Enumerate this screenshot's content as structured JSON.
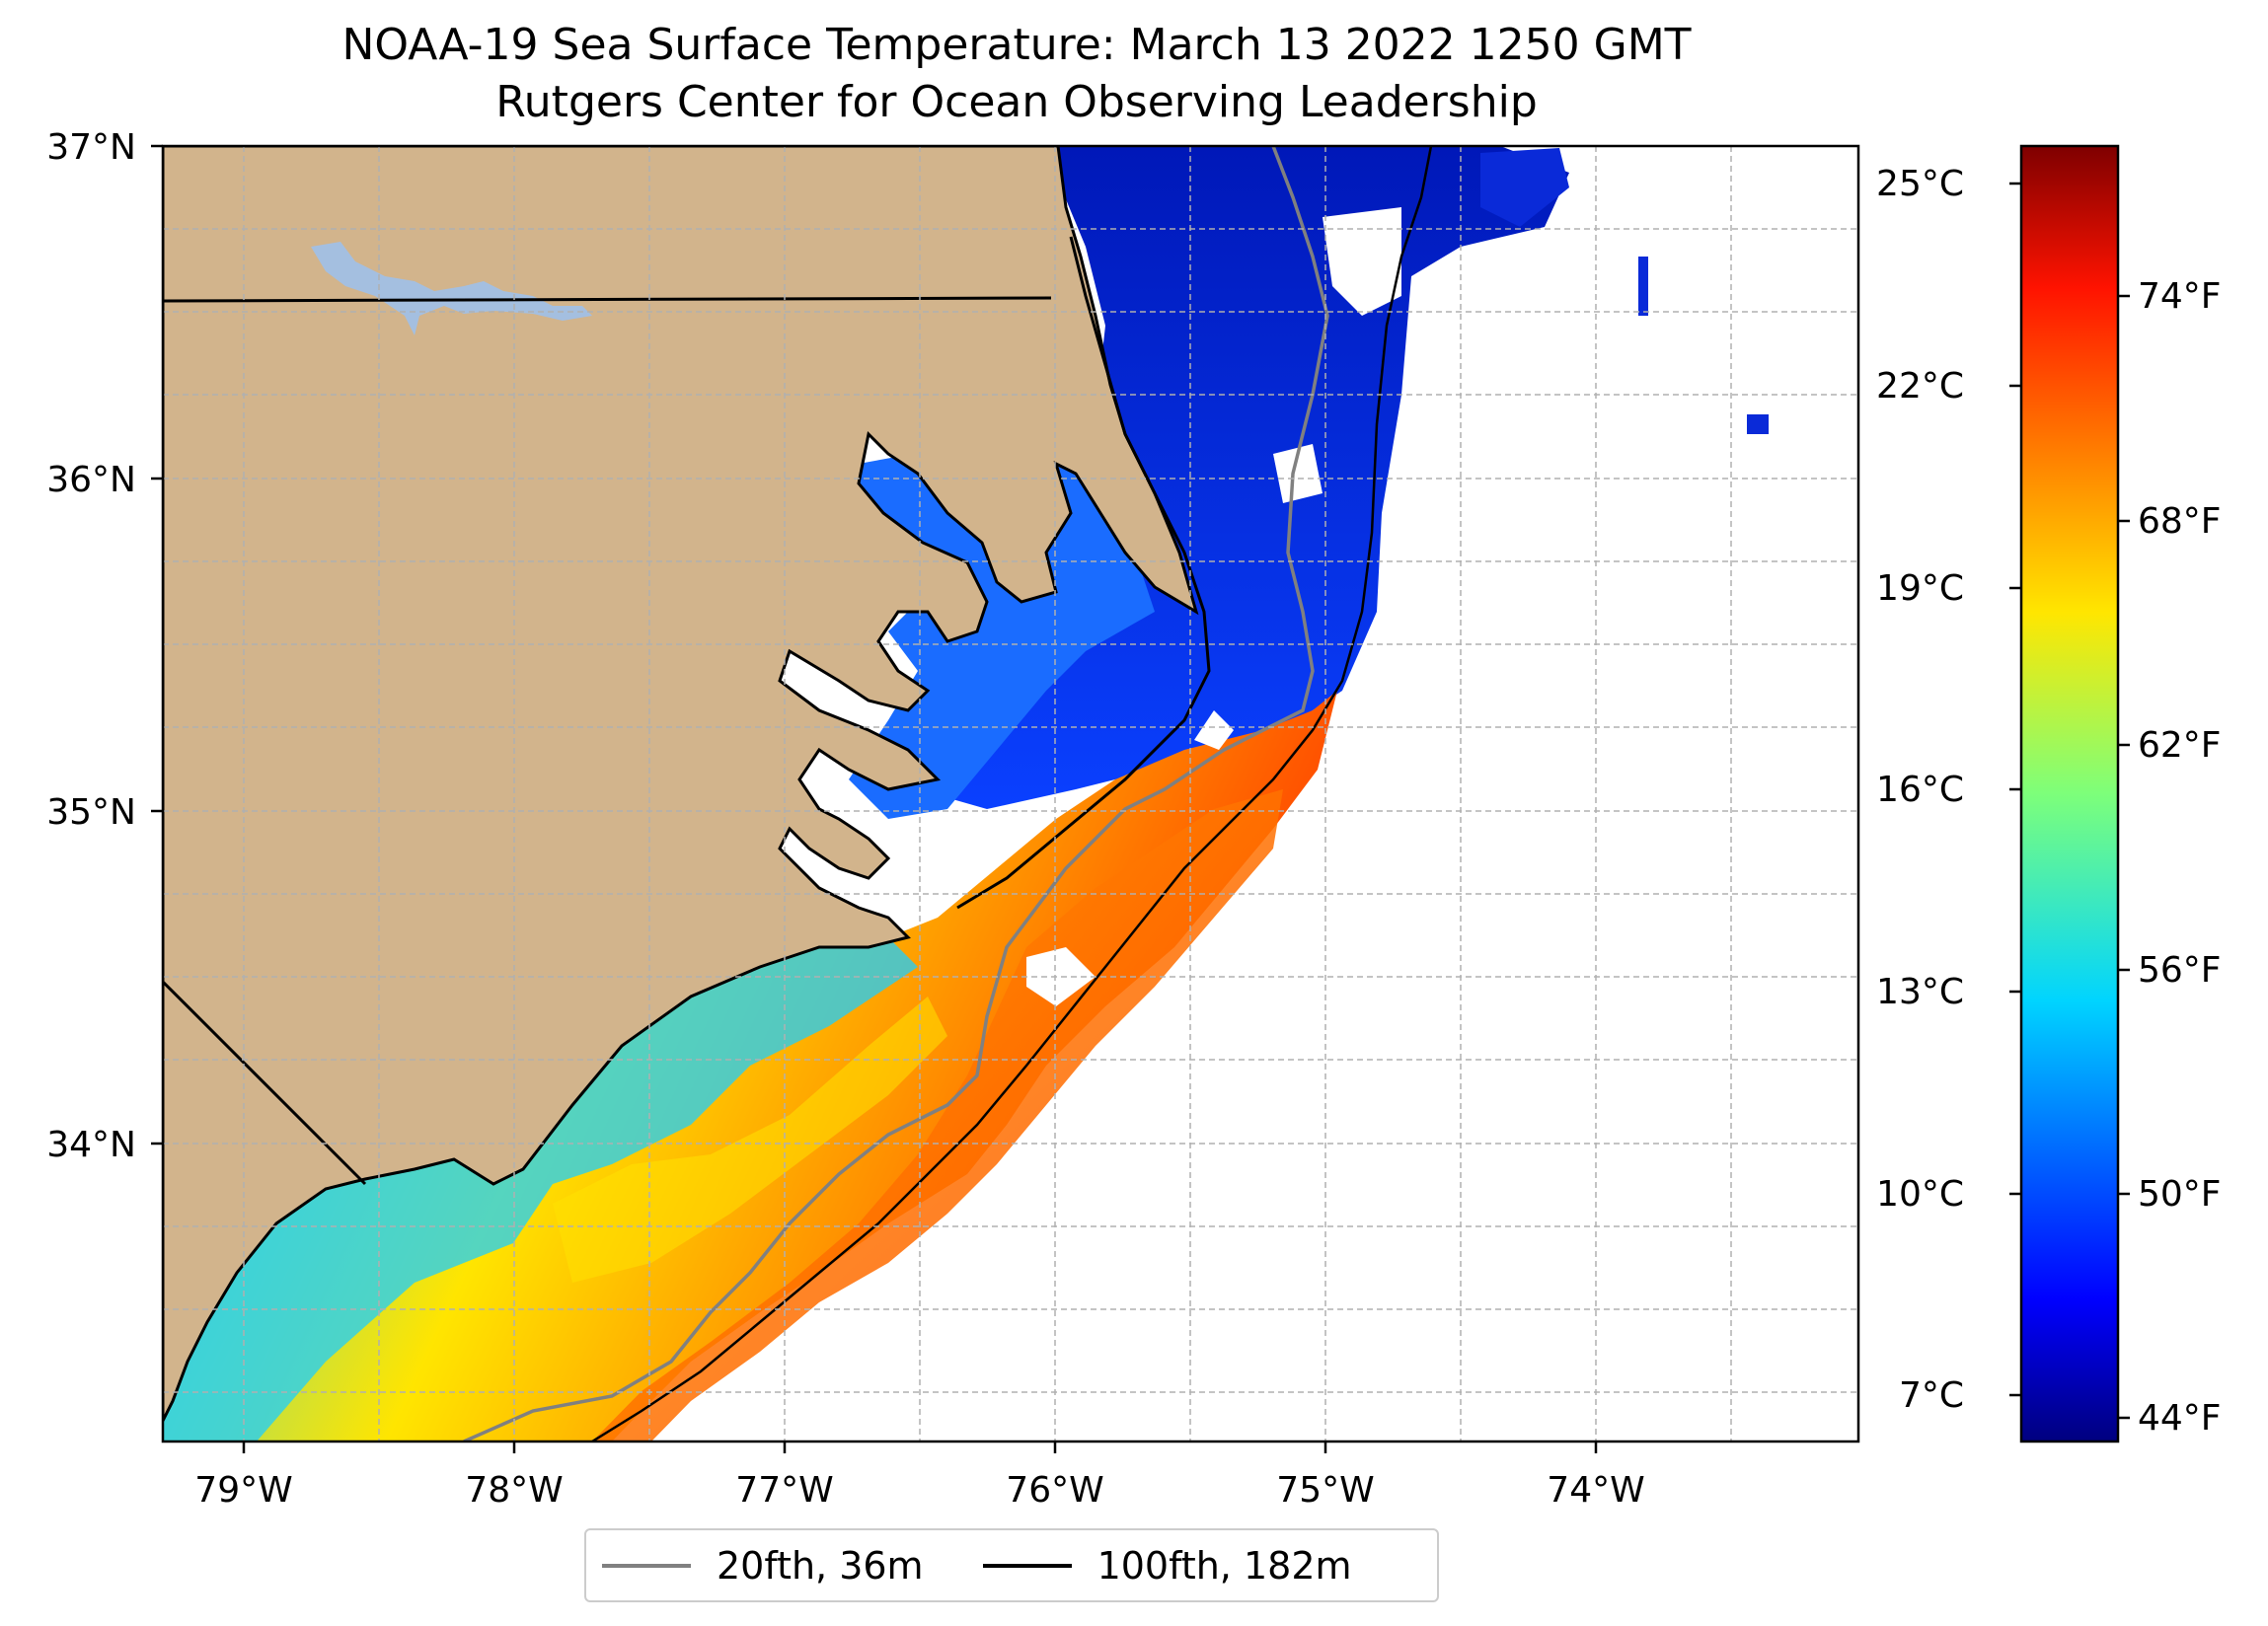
{
  "title": {
    "line1": "NOAA-19 Sea Surface Temperature: March 13 2022 1250 GMT",
    "line2": "Rutgers Center for Ocean Observing Leadership"
  },
  "map": {
    "lat_labels": [
      "37°N",
      "36°N",
      "35°N",
      "34°N"
    ],
    "lon_labels": [
      "79°W",
      "78°W",
      "77°W",
      "76°W",
      "75°W",
      "74°W"
    ],
    "lat_range": [
      33.1,
      37.0
    ],
    "lon_range": [
      -79.3,
      -73.05
    ],
    "land_color": "#d2b48c",
    "lake_color": "#a4bfe0",
    "grid": true
  },
  "colorbar": {
    "celsius_labels": [
      "25°C",
      "22°C",
      "19°C",
      "16°C",
      "13°C",
      "10°C",
      "7°C"
    ],
    "fahrenheit_labels": [
      "74°F",
      "68°F",
      "62°F",
      "56°F",
      "50°F",
      "44°F"
    ],
    "colormap": "jet",
    "range_c": [
      6.5,
      25.5
    ]
  },
  "legend": {
    "items": [
      {
        "label": "20fth, 36m",
        "color": "#808080"
      },
      {
        "label": "100fth, 182m",
        "color": "#000000"
      }
    ]
  }
}
